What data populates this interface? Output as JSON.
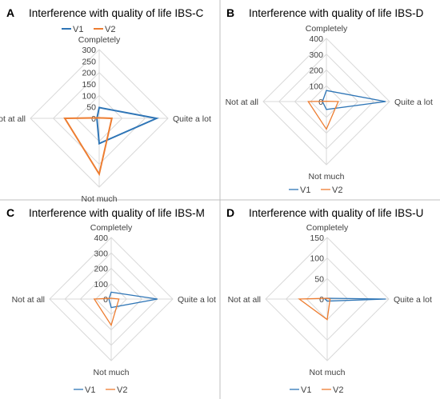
{
  "colors": {
    "V1": "#2E75B6",
    "V2": "#ED7D31",
    "grid": "#D9D9D9",
    "divider": "#BFBFBF"
  },
  "chart_data": [
    {
      "panel": "A",
      "type": "radar",
      "title": "Interference with quality of life IBS-C",
      "categories": [
        "Completely",
        "Quite a lot",
        "Not much",
        "Not at all"
      ],
      "rmax": 300,
      "ticks": [
        0,
        50,
        100,
        150,
        200,
        250,
        300
      ],
      "grid": [
        0,
        100,
        200,
        300
      ],
      "legend": "top",
      "series": [
        {
          "name": "V1",
          "values": [
            47,
            250,
            110,
            10
          ]
        },
        {
          "name": "V2",
          "values": [
            2,
            55,
            243,
            150
          ]
        }
      ]
    },
    {
      "panel": "B",
      "type": "radar",
      "title": "Interference with quality of life IBS-D",
      "categories": [
        "Completely",
        "Quite a lot",
        "Not much",
        "Not at all"
      ],
      "rmax": 400,
      "ticks": [
        0,
        100,
        200,
        300,
        400
      ],
      "grid": [
        0,
        100,
        200,
        300,
        400
      ],
      "legend": "bottom",
      "series": [
        {
          "name": "V1",
          "values": [
            70,
            375,
            50,
            25
          ]
        },
        {
          "name": "V2",
          "values": [
            2,
            75,
            175,
            115
          ]
        }
      ]
    },
    {
      "panel": "C",
      "type": "radar",
      "title": "Interference with quality of life IBS-M",
      "categories": [
        "Completely",
        "Quite a lot",
        "Not much",
        "Not at all"
      ],
      "rmax": 400,
      "ticks": [
        0,
        100,
        200,
        300,
        400
      ],
      "grid": [
        0,
        100,
        200,
        300,
        400
      ],
      "legend": "bottom",
      "series": [
        {
          "name": "V1",
          "values": [
            45,
            300,
            55,
            15
          ]
        },
        {
          "name": "V2",
          "values": [
            5,
            50,
            170,
            110
          ]
        }
      ]
    },
    {
      "panel": "D",
      "type": "radar",
      "title": "Interference with quality of life IBS-U",
      "categories": [
        "Completely",
        "Quite a lot",
        "Not much",
        "Not at all"
      ],
      "rmax": 150,
      "ticks": [
        0,
        50,
        100,
        150
      ],
      "grid": [
        0,
        50,
        100,
        150
      ],
      "legend": "bottom",
      "series": [
        {
          "name": "V1",
          "values": [
            2,
            143,
            5,
            5
          ]
        },
        {
          "name": "V2",
          "values": [
            2,
            7,
            50,
            68
          ]
        }
      ]
    }
  ]
}
